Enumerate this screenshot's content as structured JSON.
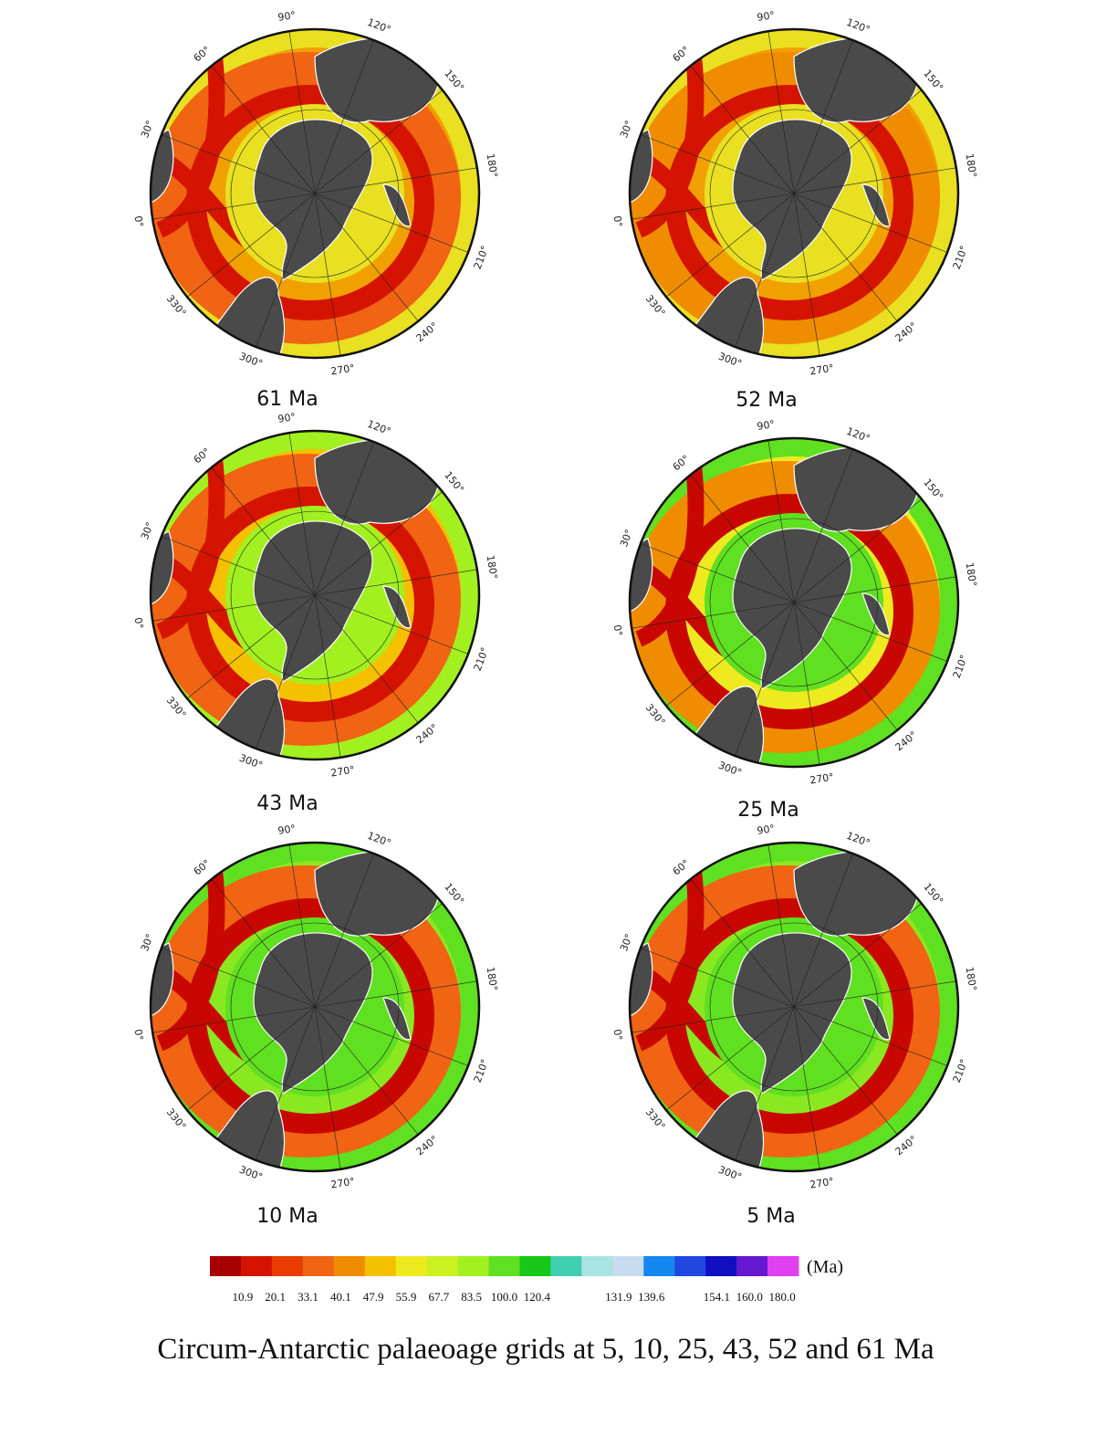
{
  "panels": [
    {
      "label": "61 Ma"
    },
    {
      "label": "52 Ma"
    },
    {
      "label": "43 Ma"
    },
    {
      "label": "25 Ma"
    },
    {
      "label": "10 Ma"
    },
    {
      "label": "5 Ma"
    }
  ],
  "longitude_labels": [
    "0°",
    "30°",
    "60°",
    "90°",
    "120°",
    "150°",
    "180°",
    "210°",
    "240°",
    "270°",
    "300°",
    "330°"
  ],
  "colorbar": {
    "unit": "(Ma)",
    "ticks": [
      10.9,
      20.1,
      33.1,
      40.1,
      47.9,
      55.9,
      67.7,
      83.5,
      100.0,
      120.4,
      131.9,
      139.6,
      154.1,
      160.0,
      180.0
    ],
    "colors": [
      "#a80000",
      "#d41400",
      "#e83c00",
      "#f06414",
      "#f08c00",
      "#f5c000",
      "#eeea20",
      "#cdf020",
      "#a2f020",
      "#5fe020",
      "#18c818",
      "#40d0b0",
      "#a8e4e4",
      "#c8dcf0",
      "#1488f0",
      "#2048e0",
      "#1010c0",
      "#6418d0",
      "#e040f0"
    ]
  },
  "caption": "Circum-Antarctic palaeoage grids at 5, 10, 25, 43, 52 and 61 Ma"
}
